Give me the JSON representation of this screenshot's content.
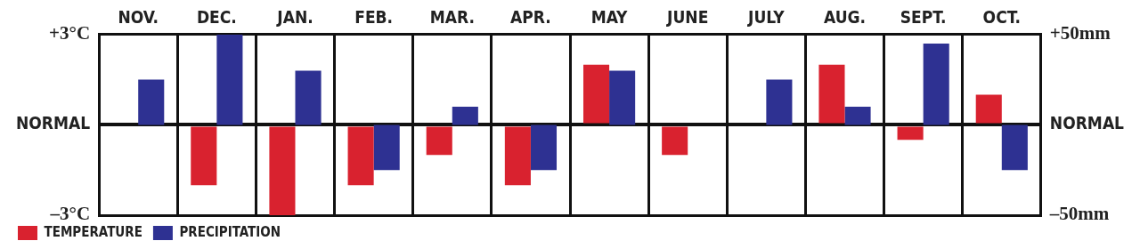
{
  "chart_data": {
    "type": "bar",
    "categories": [
      "NOV.",
      "DEC.",
      "JAN.",
      "FEB.",
      "MAR.",
      "APR.",
      "MAY",
      "JUNE",
      "JULY",
      "AUG.",
      "SEPT.",
      "OCT."
    ],
    "series": [
      {
        "name": "TEMPERATURE",
        "color": "#d9222f",
        "values": [
          0,
          -2,
          -3,
          -2,
          -1,
          -2,
          2,
          -1,
          0,
          2,
          -0.5,
          1
        ]
      },
      {
        "name": "PRECIPITATION",
        "color": "#2e3192",
        "axis": "y2",
        "values": [
          25,
          50,
          30,
          -25,
          10,
          -25,
          30,
          0,
          25,
          10,
          45,
          -25
        ]
      }
    ],
    "ylim": [
      -3,
      3
    ],
    "yticks": [
      {
        "value": -3,
        "label": "–3°C"
      },
      {
        "value": 0,
        "label": "NORMAL"
      },
      {
        "value": 3,
        "label": "+3°C"
      }
    ],
    "y2lim": [
      -50,
      50
    ],
    "y2ticks": [
      {
        "value": -50,
        "label": "–50mm"
      },
      {
        "value": 0,
        "label": "NORMAL"
      },
      {
        "value": 50,
        "label": "+50mm"
      }
    ],
    "grid": true,
    "legend": "bottom-left"
  }
}
